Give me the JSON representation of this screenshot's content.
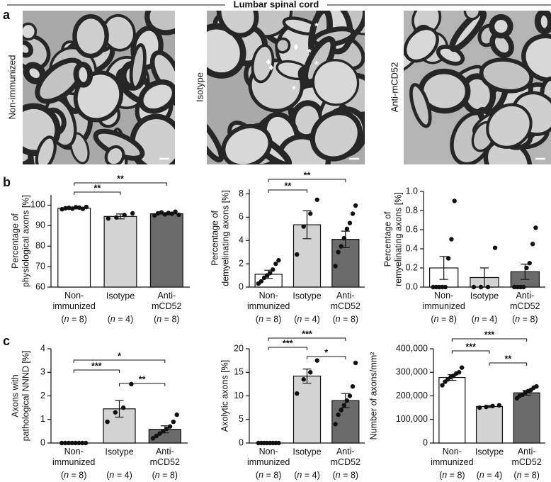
{
  "header": {
    "title": "Lumbar spinal cord"
  },
  "panel_labels": [
    "a",
    "b",
    "c"
  ],
  "images": [
    {
      "label": "Non-immunized"
    },
    {
      "label": "Isotype",
      "symbols": [
        "*",
        "*",
        "*",
        "*",
        "♦",
        "♦",
        "♦"
      ]
    },
    {
      "label": "Anti-mCD52"
    }
  ],
  "chart_data": [
    {
      "type": "bar",
      "ylabel": "Percentage of\nphysiological axons [%]",
      "categories": [
        "Non-\nimmunized",
        "Isotype",
        "Anti-\nmCD52"
      ],
      "group_sizes": [
        "(n = 8)",
        "(n = 4)",
        "(n = 8)"
      ],
      "values": [
        98.5,
        94.5,
        95.8
      ],
      "errors": [
        0.3,
        1.2,
        0.5
      ],
      "points": [
        [
          98,
          98.5,
          98.7,
          98.3,
          99,
          98.8,
          98.2,
          99.1
        ],
        [
          93.5,
          94,
          95.2,
          96
        ],
        [
          95,
          96,
          96.5,
          95.5,
          96.2,
          95.8,
          96.8,
          95.3
        ]
      ],
      "colors": [
        "#ffffff",
        "#d3d3d3",
        "#6b6b6b"
      ],
      "ylim": [
        60,
        105
      ],
      "yticks": [
        60,
        70,
        80,
        90,
        100
      ],
      "significance": [
        "**",
        "**"
      ]
    },
    {
      "type": "bar",
      "ylabel": "Percentage of\ndemyelinating axons [%]",
      "categories": [
        "Non-\nimmunized",
        "Isotype",
        "Anti-\nmCD52"
      ],
      "group_sizes": [
        "(n = 8)",
        "(n = 4)",
        "(n = 8)"
      ],
      "values": [
        1.1,
        5.35,
        4.1
      ],
      "errors": [
        0.35,
        1.2,
        0.7
      ],
      "points": [
        [
          0.3,
          0.5,
          0.8,
          1.0,
          1.2,
          1.5,
          2.0,
          2.3
        ],
        [
          2.8,
          5.2,
          6.3,
          7.5
        ],
        [
          1.8,
          3.0,
          3.5,
          4.2,
          5.0,
          5.5,
          6.3,
          7.0
        ]
      ],
      "colors": [
        "#ffffff",
        "#d3d3d3",
        "#6b6b6b"
      ],
      "ylim": [
        0,
        8.4
      ],
      "yticks": [
        0,
        2,
        4,
        6,
        8
      ],
      "significance": [
        "**",
        "**"
      ]
    },
    {
      "type": "bar",
      "ylabel": "Percentage of\nremyelinating axons [%]",
      "categories": [
        "Non-\nimmunized",
        "Isotype",
        "Anti-\nmCD52"
      ],
      "group_sizes": [
        "(n = 8)",
        "(n = 4)",
        "(n = 8)"
      ],
      "values": [
        0.2,
        0.1,
        0.16
      ],
      "errors": [
        0.12,
        0.1,
        0.08
      ],
      "points": [
        [
          0,
          0,
          0,
          0,
          0,
          0.3,
          0.5,
          0.9
        ],
        [
          0,
          0,
          0,
          0.41
        ],
        [
          0,
          0,
          0,
          0,
          0.2,
          0.25,
          0.45,
          0.62
        ]
      ],
      "colors": [
        "#ffffff",
        "#d3d3d3",
        "#6b6b6b"
      ],
      "ylim": [
        0,
        1
      ],
      "yticks": [
        {
          "value": 0,
          "label": "0.0"
        },
        0.2,
        0.4,
        0.6,
        0.8,
        {
          "value": 1,
          "label": "1.0"
        }
      ],
      "significance": []
    },
    {
      "type": "bar",
      "ylabel": "Axons with\npathological NNND [%]",
      "categories": [
        "Non-\nimmunized",
        "Isotype",
        "Anti-\nmCD52"
      ],
      "group_sizes": [
        "(n = 8)",
        "(n = 4)",
        "(n = 8)"
      ],
      "values": [
        0,
        1.45,
        0.58
      ],
      "errors": [
        0,
        0.35,
        0.15
      ],
      "points": [
        [
          0,
          0,
          0,
          0,
          0,
          0,
          0,
          0
        ],
        [
          0.9,
          1.3,
          1.5,
          2.5
        ],
        [
          0.2,
          0.3,
          0.4,
          0.5,
          0.6,
          0.7,
          0.9,
          1.2
        ]
      ],
      "colors": [
        "#ffffff",
        "#d3d3d3",
        "#6b6b6b"
      ],
      "ylim": [
        0,
        4
      ],
      "yticks": [
        0,
        1,
        2,
        3,
        4
      ],
      "significance": [
        "*",
        "***",
        "**"
      ]
    },
    {
      "type": "bar",
      "ylabel": "Axolytic axons [%]",
      "categories": [
        "Non-\nimmunized",
        "Isotype",
        "Anti-\nmCD52"
      ],
      "group_sizes": [
        "(n = 8)",
        "(n = 4)",
        "(n = 8)"
      ],
      "values": [
        0,
        14.2,
        9.0
      ],
      "errors": [
        0,
        1.5,
        1.5
      ],
      "points": [
        [
          0,
          0,
          0,
          0,
          0,
          0,
          0,
          0
        ],
        [
          10.5,
          13.5,
          15,
          17.5
        ],
        [
          4,
          6,
          7,
          8,
          9,
          10,
          12,
          17
        ]
      ],
      "colors": [
        "#ffffff",
        "#d3d3d3",
        "#6b6b6b"
      ],
      "ylim": [
        0,
        20
      ],
      "yticks": [
        0,
        5,
        10,
        15,
        20
      ],
      "significance": [
        "***",
        "***",
        "*"
      ]
    },
    {
      "type": "bar",
      "ylabel": "Number of axons/mm²",
      "categories": [
        "Non-\nimmunized",
        "Isotype",
        "Anti-\nmCD52"
      ],
      "group_sizes": [
        "(n = 8)",
        "(n = 4)",
        "(n = 8)"
      ],
      "values": [
        278000,
        155000,
        213000
      ],
      "errors": [
        12000,
        4000,
        10000
      ],
      "points": [
        [
          245000,
          260000,
          270000,
          280000,
          285000,
          295000,
          300000,
          320000
        ],
        [
          150000,
          153000,
          157000,
          160000
        ],
        [
          190000,
          200000,
          205000,
          215000,
          220000,
          225000,
          235000,
          240000
        ]
      ],
      "colors": [
        "#ffffff",
        "#d3d3d3",
        "#6b6b6b"
      ],
      "ylim": [
        0,
        400000
      ],
      "yticks": [
        0,
        {
          "value": 100000,
          "label": "100,000"
        },
        {
          "value": 200000,
          "label": "200,000"
        },
        {
          "value": 300000,
          "label": "300,000"
        },
        {
          "value": 400000,
          "label": "400,000"
        }
      ],
      "significance": [
        "***",
        "***",
        "**"
      ]
    }
  ]
}
